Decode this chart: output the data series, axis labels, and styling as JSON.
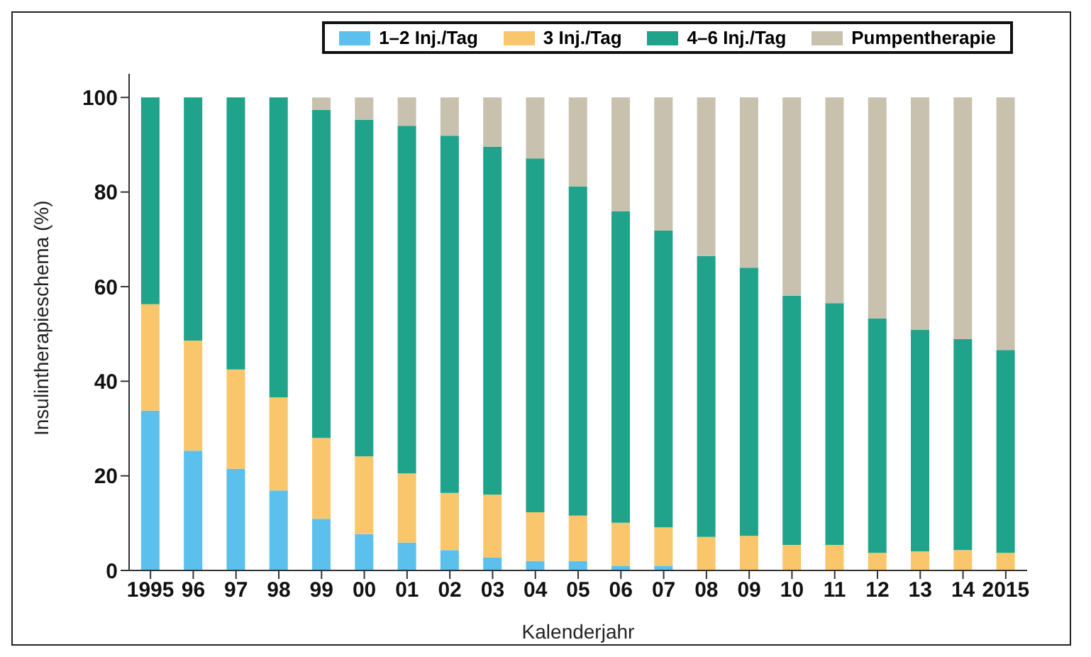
{
  "chart_data": {
    "type": "bar",
    "stacked": true,
    "xlabel": "Kalenderjahr",
    "ylabel": "Insulintherapieschema (%)",
    "categories": [
      "1995",
      "96",
      "97",
      "98",
      "99",
      "00",
      "01",
      "02",
      "03",
      "04",
      "05",
      "06",
      "07",
      "08",
      "09",
      "10",
      "11",
      "12",
      "13",
      "14",
      "2015"
    ],
    "series": [
      {
        "name": "1–2 Inj./Tag",
        "color": "#5bc0ec",
        "values": [
          33.8,
          25.3,
          21.5,
          16.9,
          10.9,
          7.7,
          5.9,
          4.3,
          2.7,
          2,
          2,
          1,
          1,
          0,
          0,
          0,
          0,
          0,
          0,
          0,
          0
        ]
      },
      {
        "name": "3 Inj./Tag",
        "color": "#f9c66b",
        "values": [
          22.5,
          23.3,
          21,
          19.7,
          17.1,
          16.4,
          14.6,
          12.1,
          13.3,
          10.3,
          9.6,
          9.1,
          8.1,
          7.1,
          7.3,
          5.4,
          5.4,
          3.7,
          4,
          4.3,
          3.7
        ]
      },
      {
        "name": "4–6 Inj./Tag",
        "color": "#1fa38a",
        "values": [
          43.7,
          51.4,
          57.5,
          63.4,
          69.4,
          71.2,
          73.5,
          75.5,
          73.6,
          74.8,
          69.6,
          65.8,
          62.8,
          59.4,
          56.7,
          52.7,
          51.1,
          49.6,
          46.9,
          44.6,
          42.9
        ]
      },
      {
        "name": "Pumpentherapie",
        "color": "#c8c1ae",
        "values": [
          0,
          0,
          0,
          0,
          2.6,
          4.7,
          6,
          8.1,
          10.4,
          12.9,
          18.8,
          24.1,
          28.1,
          33.5,
          36,
          41.9,
          43.5,
          46.7,
          49.1,
          51.1,
          53.4
        ]
      }
    ],
    "ylim": [
      0,
      105
    ],
    "yticks": [
      0,
      20,
      40,
      60,
      80,
      100
    ],
    "grid": false,
    "legend": "top right"
  }
}
